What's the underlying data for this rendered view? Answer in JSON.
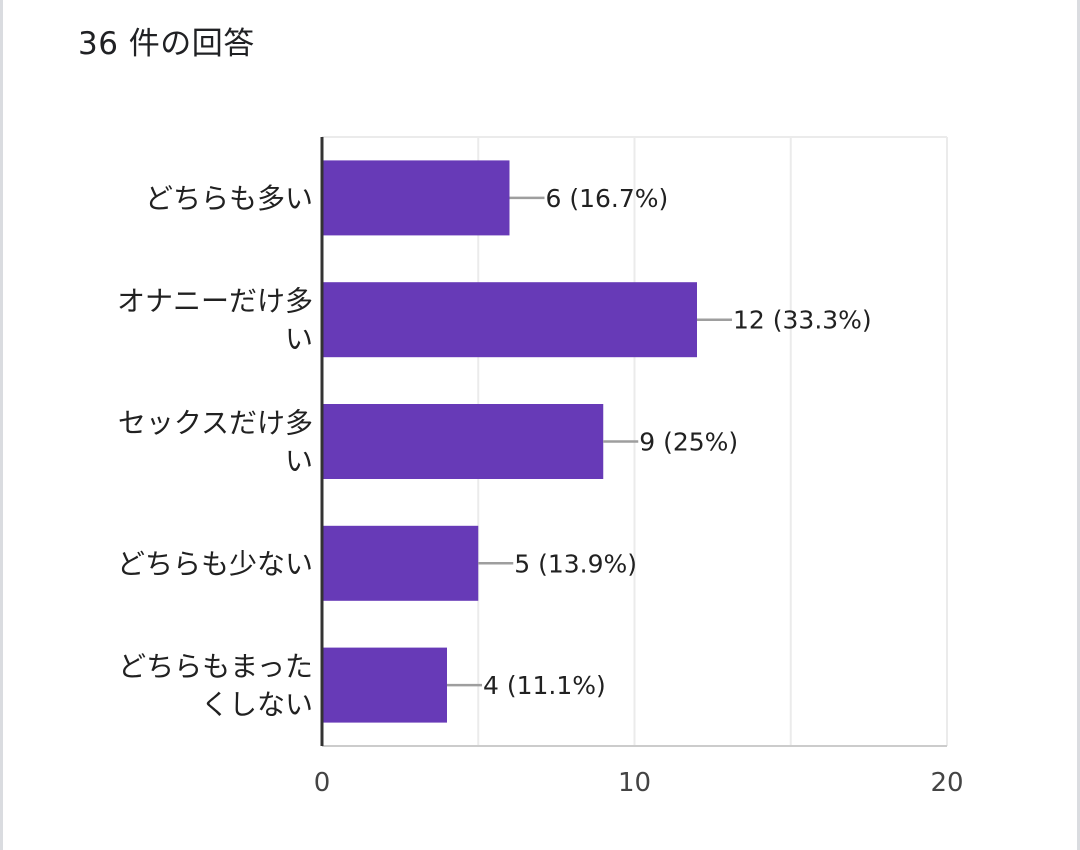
{
  "header": {
    "response_count": "36 件の回答"
  },
  "colors": {
    "bar": "#673ab7",
    "connector": "#9e9e9e",
    "grid": "#ebebeb",
    "axis": "#333333",
    "text": "#212121",
    "tick_text": "#444444"
  },
  "chart_data": {
    "type": "bar",
    "orientation": "horizontal",
    "categories": [
      [
        "どちらも多い"
      ],
      [
        "オナニーだけ多",
        "い"
      ],
      [
        "セックスだけ多",
        "い"
      ],
      [
        "どちらも少ない"
      ],
      [
        "どちらもまった",
        "くしない"
      ]
    ],
    "values": [
      6,
      12,
      9,
      5,
      4
    ],
    "value_labels": [
      "6 (16.7%)",
      "12 (33.3%)",
      "9 (25%)",
      "5 (13.9%)",
      "4 (11.1%)"
    ],
    "xlim": [
      0,
      20
    ],
    "xticks": [
      0,
      10,
      20
    ],
    "minor_gridlines": [
      5,
      15
    ],
    "grid": true,
    "legend": "none"
  }
}
